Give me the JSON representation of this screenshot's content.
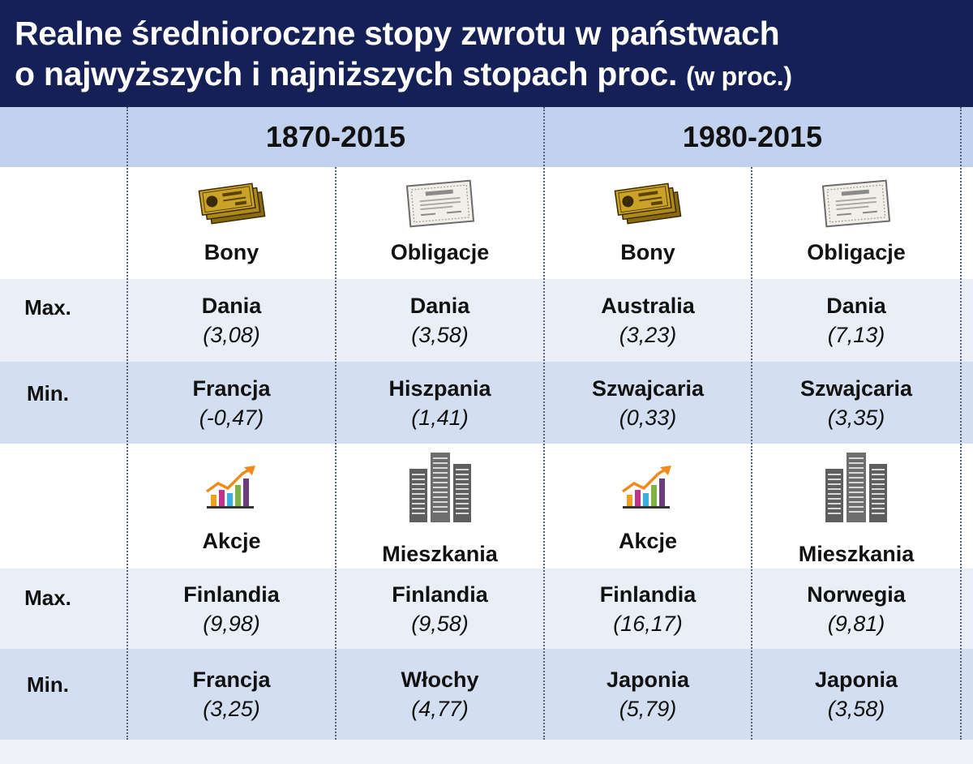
{
  "title": {
    "line1": "Realne średnioroczne stopy zwrotu w państwach",
    "line2": "o najwyższych i najniższych stopach proc.",
    "unit": "(w proc.)"
  },
  "periods": [
    "1870-2015",
    "1980-2015"
  ],
  "section1": {
    "categories": [
      "Bony",
      "Obligacje",
      "Bony",
      "Obligacje"
    ],
    "icons": [
      "voucher-icon",
      "bond-certificate-icon",
      "voucher-icon",
      "bond-certificate-icon"
    ],
    "rows": [
      {
        "label": "Max.",
        "cells": [
          {
            "country": "Dania",
            "value": "(3,08)"
          },
          {
            "country": "Dania",
            "value": "(3,58)"
          },
          {
            "country": "Australia",
            "value": "(3,23)"
          },
          {
            "country": "Dania",
            "value": "(7,13)"
          }
        ]
      },
      {
        "label": "Min.",
        "cells": [
          {
            "country": "Francja",
            "value": "(-0,47)"
          },
          {
            "country": "Hiszpania",
            "value": "(1,41)"
          },
          {
            "country": "Szwajcaria",
            "value": "(0,33)"
          },
          {
            "country": "Szwajcaria",
            "value": "(3,35)"
          }
        ]
      }
    ]
  },
  "section2": {
    "categories": [
      "Akcje",
      "Mieszkania",
      "Akcje",
      "Mieszkania"
    ],
    "icons": [
      "stock-chart-icon",
      "apartment-buildings-icon",
      "stock-chart-icon",
      "apartment-buildings-icon"
    ],
    "rows": [
      {
        "label": "Max.",
        "cells": [
          {
            "country": "Finlandia",
            "value": "(9,98)"
          },
          {
            "country": "Finlandia",
            "value": "(9,58)"
          },
          {
            "country": "Finlandia",
            "value": "(16,17)"
          },
          {
            "country": "Norwegia",
            "value": "(9,81)"
          }
        ]
      },
      {
        "label": "Min.",
        "cells": [
          {
            "country": "Francja",
            "value": "(3,25)"
          },
          {
            "country": "Włochy",
            "value": "(4,77)"
          },
          {
            "country": "Japonia",
            "value": "(5,79)"
          },
          {
            "country": "Japonia",
            "value": "(3,58)"
          }
        ]
      }
    ]
  },
  "colors": {
    "header_bg": "#152057",
    "period_band": "#c2d2ee",
    "row_light": "#e9eef7",
    "row_dark": "#d3dff1",
    "gold": "#c9a227",
    "chart_arrow": "#f08a1c"
  }
}
